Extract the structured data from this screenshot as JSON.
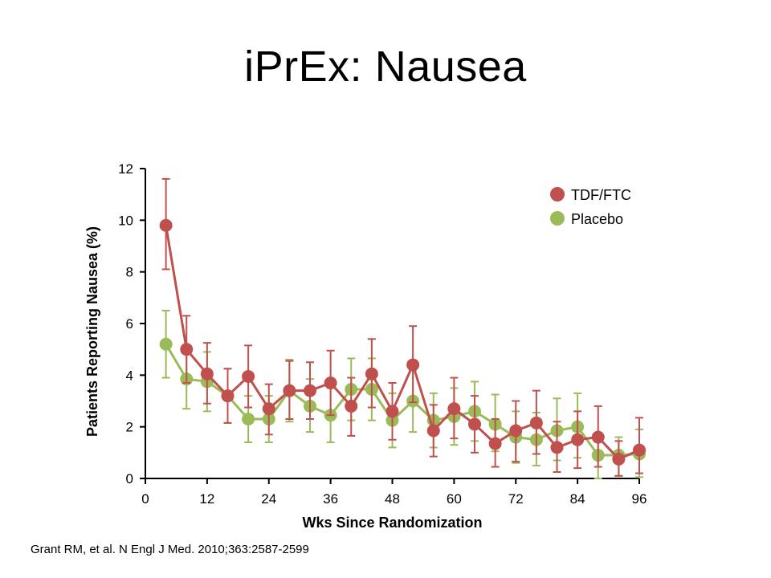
{
  "slide": {
    "title": "iPrEx: Nausea",
    "citation": "Grant RM, et al. N Engl J Med. 2010;363:2587-2599"
  },
  "chart_data": {
    "type": "line",
    "title": "",
    "xlabel": "Wks Since Randomization",
    "ylabel": "Patients Reporting Nausea (%)",
    "xlim": [
      0,
      96
    ],
    "ylim": [
      0,
      12
    ],
    "xticks": [
      0,
      12,
      24,
      36,
      48,
      60,
      72,
      84,
      96
    ],
    "yticks": [
      0,
      2,
      4,
      6,
      8,
      10,
      12
    ],
    "grid": false,
    "legend": "top-right",
    "error_bars": true,
    "series": [
      {
        "name": "TDF/FTC",
        "color": "#c0504d",
        "x": [
          4,
          8,
          12,
          16,
          20,
          24,
          28,
          32,
          36,
          40,
          44,
          48,
          52,
          56,
          60,
          64,
          68,
          72,
          76,
          80,
          84,
          88,
          92,
          96
        ],
        "y": [
          9.8,
          5.0,
          4.05,
          3.2,
          3.95,
          2.7,
          3.4,
          3.4,
          3.7,
          2.8,
          4.05,
          2.6,
          4.4,
          1.85,
          2.7,
          2.1,
          1.35,
          1.85,
          2.15,
          1.2,
          1.5,
          1.6,
          0.75,
          1.1
        ],
        "err_low": [
          8.1,
          3.7,
          2.9,
          2.15,
          2.75,
          1.7,
          2.3,
          2.3,
          2.45,
          1.65,
          2.75,
          1.5,
          2.95,
          0.85,
          1.55,
          1.0,
          0.45,
          0.65,
          0.95,
          0.25,
          0.4,
          0.45,
          0.1,
          0.2
        ],
        "err_high": [
          11.6,
          6.3,
          5.25,
          4.25,
          5.15,
          3.65,
          4.55,
          4.5,
          4.95,
          3.9,
          5.4,
          3.7,
          5.9,
          2.85,
          3.9,
          3.2,
          2.3,
          3.0,
          3.4,
          2.2,
          2.6,
          2.8,
          1.45,
          2.35
        ]
      },
      {
        "name": "Placebo",
        "color": "#9bbb59",
        "x": [
          4,
          8,
          12,
          16,
          20,
          24,
          28,
          32,
          36,
          40,
          44,
          48,
          52,
          56,
          60,
          64,
          68,
          72,
          76,
          80,
          84,
          88,
          92,
          96
        ],
        "y": [
          5.2,
          3.85,
          3.75,
          3.2,
          2.3,
          2.3,
          3.4,
          2.8,
          2.45,
          3.45,
          3.45,
          2.25,
          3.0,
          2.25,
          2.4,
          2.6,
          2.1,
          1.6,
          1.5,
          1.85,
          2.0,
          0.9,
          0.9,
          0.95
        ],
        "err_low": [
          3.9,
          2.7,
          2.6,
          2.15,
          1.4,
          1.4,
          2.2,
          1.8,
          1.4,
          2.25,
          2.25,
          1.2,
          1.8,
          1.2,
          1.3,
          1.45,
          1.05,
          0.6,
          0.5,
          0.7,
          0.8,
          0.0,
          0.1,
          0.05
        ],
        "err_high": [
          6.5,
          5.0,
          4.9,
          4.25,
          3.2,
          3.2,
          4.6,
          3.85,
          3.5,
          4.65,
          4.65,
          3.3,
          4.2,
          3.3,
          3.5,
          3.75,
          3.25,
          2.6,
          2.55,
          3.1,
          3.3,
          1.75,
          1.6,
          1.9
        ]
      }
    ]
  }
}
